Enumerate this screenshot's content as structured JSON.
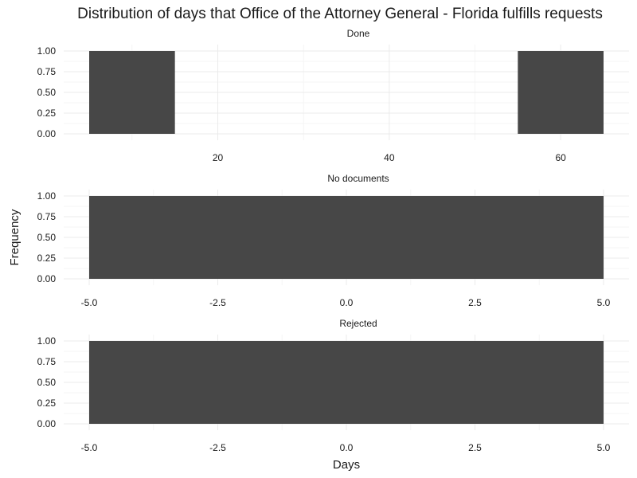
{
  "chart_data": {
    "type": "bar",
    "title": "Distribution of days that Office of the Attorney General - Florida fulfills requests",
    "xlabel": "Days",
    "ylabel": "Frequency",
    "grid": true,
    "bar_color": "#474747",
    "grid_major_color": "#ebebeb",
    "grid_minor_color": "#f5f5f5",
    "panels": [
      {
        "label": "Done",
        "xlim": [
          5,
          65
        ],
        "ylim": [
          0,
          1
        ],
        "x_ticks": [
          20,
          40,
          60
        ],
        "x_tick_labels": [
          "20",
          "40",
          "60"
        ],
        "y_ticks": [
          0,
          0.25,
          0.5,
          0.75,
          1
        ],
        "y_tick_labels": [
          "0.00",
          "0.25",
          "0.50",
          "0.75",
          "1.00"
        ],
        "bins": [
          {
            "x_start": 5,
            "x_end": 15,
            "count": 1
          },
          {
            "x_start": 55,
            "x_end": 65,
            "count": 1
          }
        ]
      },
      {
        "label": "No documents",
        "xlim": [
          -5,
          5
        ],
        "ylim": [
          0,
          1
        ],
        "x_ticks": [
          -5,
          -2.5,
          0,
          2.5,
          5
        ],
        "x_tick_labels": [
          "-5.0",
          "-2.5",
          "0.0",
          "2.5",
          "5.0"
        ],
        "y_ticks": [
          0,
          0.25,
          0.5,
          0.75,
          1
        ],
        "y_tick_labels": [
          "0.00",
          "0.25",
          "0.50",
          "0.75",
          "1.00"
        ],
        "bins": [
          {
            "x_start": -5,
            "x_end": 5,
            "count": 1
          }
        ]
      },
      {
        "label": "Rejected",
        "xlim": [
          -5,
          5
        ],
        "ylim": [
          0,
          1
        ],
        "x_ticks": [
          -5,
          -2.5,
          0,
          2.5,
          5
        ],
        "x_tick_labels": [
          "-5.0",
          "-2.5",
          "0.0",
          "2.5",
          "5.0"
        ],
        "y_ticks": [
          0,
          0.25,
          0.5,
          0.75,
          1
        ],
        "y_tick_labels": [
          "0.00",
          "0.25",
          "0.50",
          "0.75",
          "1.00"
        ],
        "bins": [
          {
            "x_start": -5,
            "x_end": 5,
            "count": 1
          }
        ]
      }
    ]
  }
}
